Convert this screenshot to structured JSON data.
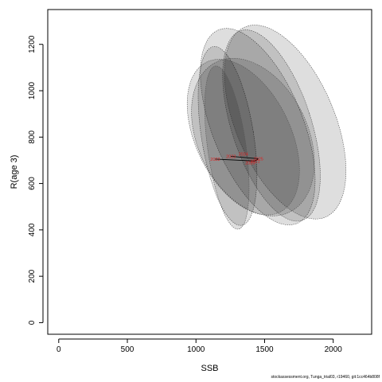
{
  "chart_data": {
    "type": "scatter",
    "title": "",
    "xlabel": "SSB",
    "ylabel": "R(age 3)",
    "xlim": [
      -80,
      2280
    ],
    "ylim": [
      -50,
      1350
    ],
    "xticks": [
      0,
      500,
      1000,
      1500,
      2000
    ],
    "yticks": [
      0,
      200,
      400,
      600,
      800,
      1000,
      1200
    ],
    "grid": false,
    "legend": "none",
    "colors": {
      "ellipse_fill": "#000000",
      "ellipse_stroke": "#555555",
      "point_label": "#dd2222",
      "path": "#000000"
    },
    "ellipses": [
      {
        "cx": 1230,
        "cy": 805,
        "sx": 190,
        "sy": 390,
        "rot": -9
      },
      {
        "cx": 1450,
        "cy": 845,
        "sx": 330,
        "sy": 450,
        "rot": -22
      },
      {
        "cx": 1550,
        "cy": 850,
        "sx": 290,
        "sy": 430,
        "rot": -18
      },
      {
        "cx": 1650,
        "cy": 865,
        "sx": 360,
        "sy": 445,
        "rot": -23
      },
      {
        "cx": 1415,
        "cy": 800,
        "sx": 400,
        "sy": 360,
        "rot": -26
      },
      {
        "cx": 1345,
        "cy": 800,
        "sx": 345,
        "sy": 360,
        "rot": -26
      },
      {
        "cx": 1225,
        "cy": 755,
        "sx": 140,
        "sy": 355,
        "rot": -8
      }
    ],
    "points": [
      {
        "label": "2024",
        "x": 1345,
        "y": 728
      },
      {
        "label": "2023",
        "x": 1255,
        "y": 717
      },
      {
        "label": "2025",
        "x": 1455,
        "y": 707
      },
      {
        "label": "2022",
        "x": 1140,
        "y": 705
      },
      {
        "label": "2021",
        "x": 1430,
        "y": 697
      },
      {
        "label": "2020",
        "x": 1395,
        "y": 690
      }
    ],
    "path_order": [
      "2022",
      "2021",
      "2025",
      "2023"
    ]
  },
  "footer": {
    "credit": "stockassessment.org, Tunga_trial03, r19460, git:1cc464b808f"
  }
}
